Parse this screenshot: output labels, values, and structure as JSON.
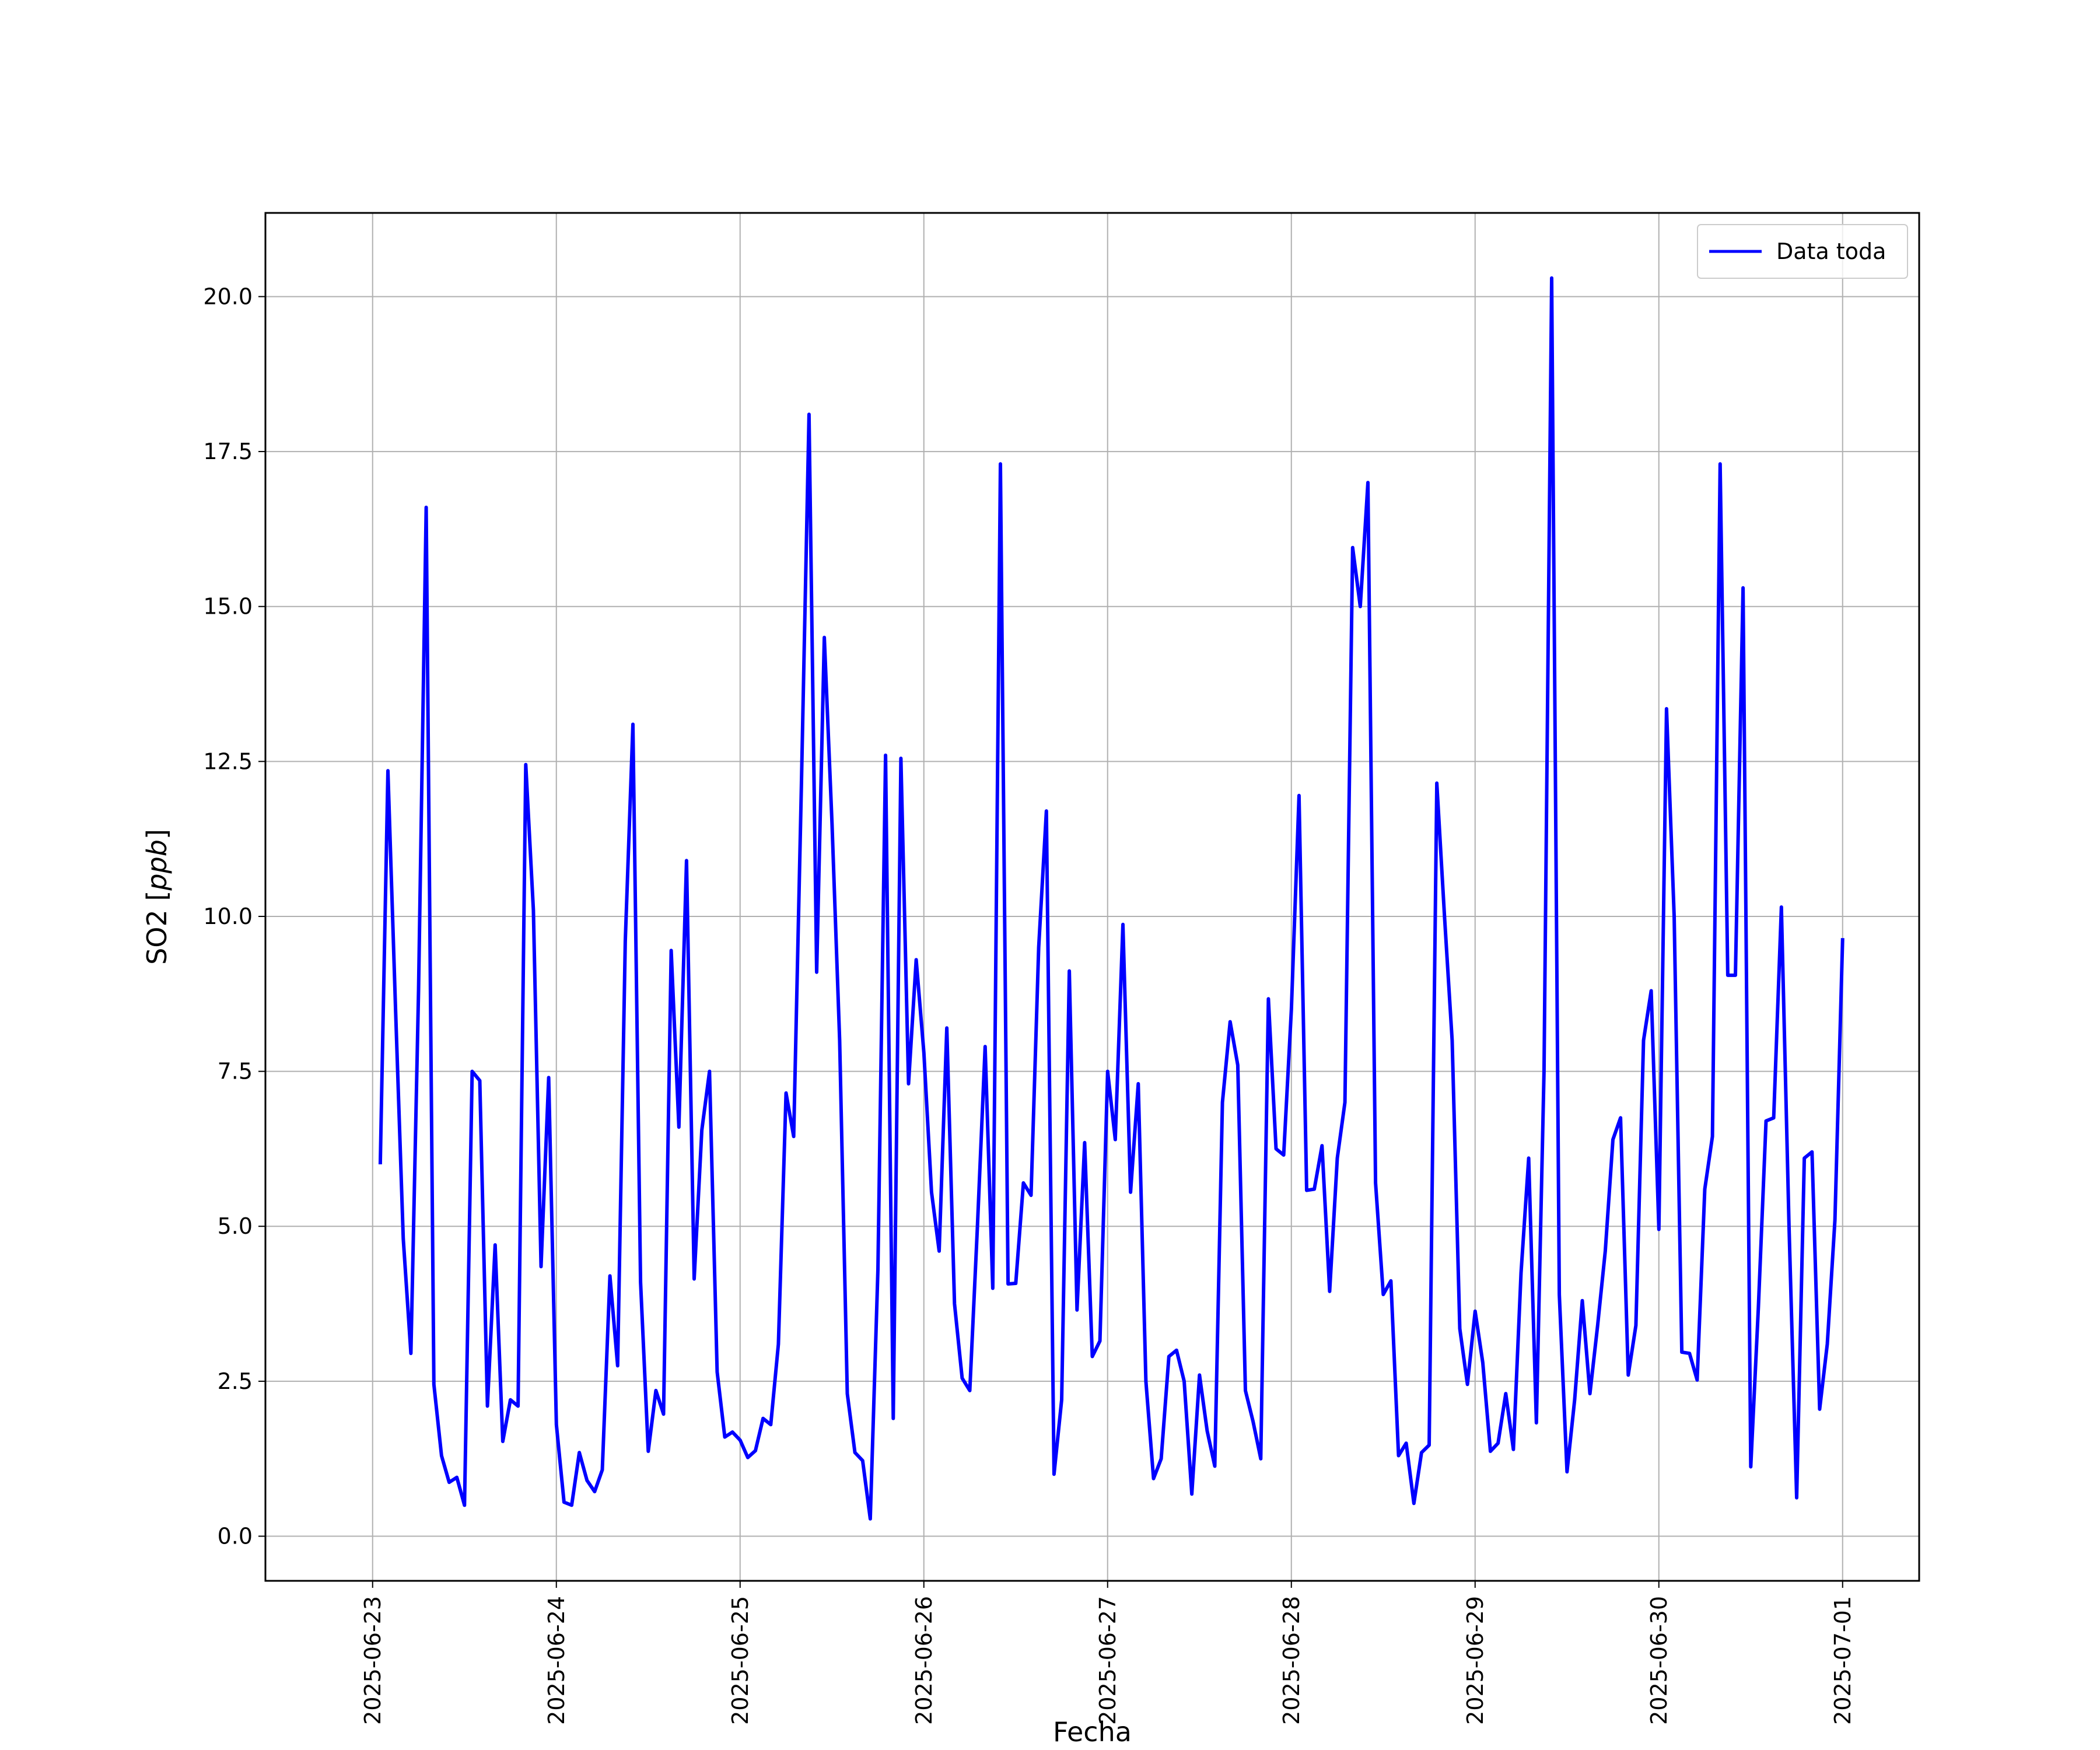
{
  "chart_data": {
    "type": "line",
    "xlabel": "Fecha",
    "ylabel_prefix": "SO2 [",
    "ylabel_unit": "ppb",
    "ylabel_suffix": "]",
    "x_ticks": [
      "2025-06-23",
      "2025-06-24",
      "2025-06-25",
      "2025-06-26",
      "2025-06-27",
      "2025-06-28",
      "2025-06-29",
      "2025-06-30",
      "2025-07-01"
    ],
    "y_ticks": [
      "0.0",
      "2.5",
      "5.0",
      "7.5",
      "10.0",
      "12.5",
      "15.0",
      "17.5",
      "20.0"
    ],
    "xlim": [
      "2025-06-22 10:00",
      "2025-07-01 10:00"
    ],
    "ylim": [
      -0.72,
      21.35
    ],
    "grid": true,
    "legend_position": "top-right",
    "series": [
      {
        "name": "Data toda",
        "color": "#0000ff",
        "x": [
          "2025-06-23 01:00",
          "2025-06-23 02:00",
          "2025-06-23 03:00",
          "2025-06-23 04:00",
          "2025-06-23 05:00",
          "2025-06-23 06:00",
          "2025-06-23 07:00",
          "2025-06-23 08:00",
          "2025-06-23 09:00",
          "2025-06-23 10:00",
          "2025-06-23 11:00",
          "2025-06-23 12:00",
          "2025-06-23 13:00",
          "2025-06-23 14:00",
          "2025-06-23 15:00",
          "2025-06-23 16:00",
          "2025-06-23 17:00",
          "2025-06-23 18:00",
          "2025-06-23 19:00",
          "2025-06-23 20:00",
          "2025-06-23 21:00",
          "2025-06-23 22:00",
          "2025-06-23 23:00",
          "2025-06-24 00:00",
          "2025-06-24 01:00",
          "2025-06-24 02:00",
          "2025-06-24 03:00",
          "2025-06-24 04:00",
          "2025-06-24 05:00",
          "2025-06-24 06:00",
          "2025-06-24 07:00",
          "2025-06-24 08:00",
          "2025-06-24 09:00",
          "2025-06-24 10:00",
          "2025-06-24 11:00",
          "2025-06-24 12:00",
          "2025-06-24 13:00",
          "2025-06-24 14:00",
          "2025-06-24 15:00",
          "2025-06-24 16:00",
          "2025-06-24 17:00",
          "2025-06-24 18:00",
          "2025-06-24 19:00",
          "2025-06-24 20:00",
          "2025-06-24 21:00",
          "2025-06-24 22:00",
          "2025-06-24 23:00",
          "2025-06-25 00:00",
          "2025-06-25 01:00",
          "2025-06-25 02:00",
          "2025-06-25 03:00",
          "2025-06-25 04:00",
          "2025-06-25 05:00",
          "2025-06-25 06:00",
          "2025-06-25 07:00",
          "2025-06-25 08:00",
          "2025-06-25 09:00",
          "2025-06-25 10:00",
          "2025-06-25 11:00",
          "2025-06-25 12:00",
          "2025-06-25 13:00",
          "2025-06-25 14:00",
          "2025-06-25 15:00",
          "2025-06-25 16:00",
          "2025-06-25 17:00",
          "2025-06-25 18:00",
          "2025-06-25 19:00",
          "2025-06-25 20:00",
          "2025-06-25 21:00",
          "2025-06-25 22:00",
          "2025-06-25 23:00",
          "2025-06-26 00:00",
          "2025-06-26 01:00",
          "2025-06-26 02:00",
          "2025-06-26 03:00",
          "2025-06-26 04:00",
          "2025-06-26 05:00",
          "2025-06-26 06:00",
          "2025-06-26 07:00",
          "2025-06-26 08:00",
          "2025-06-26 09:00",
          "2025-06-26 10:00",
          "2025-06-26 11:00",
          "2025-06-26 12:00",
          "2025-06-26 13:00",
          "2025-06-26 14:00",
          "2025-06-26 15:00",
          "2025-06-26 16:00",
          "2025-06-26 17:00",
          "2025-06-26 18:00",
          "2025-06-26 19:00",
          "2025-06-26 20:00",
          "2025-06-26 21:00",
          "2025-06-26 22:00",
          "2025-06-26 23:00",
          "2025-06-27 00:00",
          "2025-06-27 01:00",
          "2025-06-27 02:00",
          "2025-06-27 03:00",
          "2025-06-27 04:00",
          "2025-06-27 05:00",
          "2025-06-27 06:00",
          "2025-06-27 07:00",
          "2025-06-27 08:00",
          "2025-06-27 09:00",
          "2025-06-27 10:00",
          "2025-06-27 11:00",
          "2025-06-27 12:00",
          "2025-06-27 13:00",
          "2025-06-27 14:00",
          "2025-06-27 15:00",
          "2025-06-27 16:00",
          "2025-06-27 17:00",
          "2025-06-27 18:00",
          "2025-06-27 19:00",
          "2025-06-27 20:00",
          "2025-06-27 21:00",
          "2025-06-27 22:00",
          "2025-06-27 23:00",
          "2025-06-28 00:00",
          "2025-06-28 01:00",
          "2025-06-28 02:00",
          "2025-06-28 03:00",
          "2025-06-28 04:00",
          "2025-06-28 05:00",
          "2025-06-28 06:00",
          "2025-06-28 07:00",
          "2025-06-28 08:00",
          "2025-06-28 09:00",
          "2025-06-28 10:00",
          "2025-06-28 11:00",
          "2025-06-28 12:00",
          "2025-06-28 13:00",
          "2025-06-28 14:00",
          "2025-06-28 15:00",
          "2025-06-28 16:00",
          "2025-06-28 17:00",
          "2025-06-28 18:00",
          "2025-06-28 19:00",
          "2025-06-28 20:00",
          "2025-06-28 21:00",
          "2025-06-28 22:00",
          "2025-06-28 23:00",
          "2025-06-29 00:00",
          "2025-06-29 01:00",
          "2025-06-29 02:00",
          "2025-06-29 03:00",
          "2025-06-29 04:00",
          "2025-06-29 05:00",
          "2025-06-29 06:00",
          "2025-06-29 07:00",
          "2025-06-29 08:00",
          "2025-06-29 09:00",
          "2025-06-29 10:00",
          "2025-06-29 11:00",
          "2025-06-29 12:00",
          "2025-06-29 13:00",
          "2025-06-29 14:00",
          "2025-06-29 15:00",
          "2025-06-29 16:00",
          "2025-06-29 17:00",
          "2025-06-29 18:00",
          "2025-06-29 19:00",
          "2025-06-29 20:00",
          "2025-06-29 21:00",
          "2025-06-29 22:00",
          "2025-06-29 23:00",
          "2025-06-30 00:00",
          "2025-06-30 01:00",
          "2025-06-30 02:00",
          "2025-06-30 03:00",
          "2025-06-30 04:00",
          "2025-06-30 05:00",
          "2025-06-30 06:00",
          "2025-06-30 07:00",
          "2025-06-30 08:00",
          "2025-06-30 09:00",
          "2025-06-30 10:00",
          "2025-06-30 11:00",
          "2025-06-30 12:00",
          "2025-06-30 13:00",
          "2025-06-30 14:00",
          "2025-06-30 15:00",
          "2025-06-30 16:00",
          "2025-06-30 17:00",
          "2025-06-30 18:00",
          "2025-06-30 19:00",
          "2025-06-30 20:00",
          "2025-06-30 21:00",
          "2025-06-30 22:00",
          "2025-06-30 23:00",
          "2025-07-01 00:00"
        ],
        "values": [
          6.0,
          12.35,
          8.5,
          4.8,
          2.95,
          8.8,
          16.6,
          2.45,
          1.3,
          0.87,
          0.95,
          0.5,
          7.5,
          7.35,
          2.1,
          4.7,
          1.53,
          2.2,
          2.1,
          12.45,
          10.1,
          4.35,
          7.4,
          1.8,
          0.55,
          0.5,
          1.35,
          0.9,
          0.72,
          1.07,
          4.2,
          2.75,
          9.6,
          13.1,
          4.1,
          1.37,
          2.35,
          1.97,
          9.45,
          6.6,
          10.9,
          4.15,
          6.55,
          7.5,
          2.65,
          1.6,
          1.68,
          1.55,
          1.27,
          1.38,
          1.9,
          1.8,
          3.1,
          7.15,
          6.45,
          12.1,
          18.1,
          9.1,
          14.5,
          11.5,
          8.0,
          2.3,
          1.35,
          1.22,
          0.28,
          4.3,
          12.6,
          1.9,
          12.55,
          7.3,
          9.3,
          7.8,
          5.55,
          4.6,
          8.2,
          3.75,
          2.55,
          2.35,
          5.0,
          7.9,
          4.0,
          17.3,
          4.07,
          4.08,
          5.7,
          5.5,
          9.5,
          11.7,
          1.0,
          2.2,
          9.12,
          3.65,
          6.35,
          2.9,
          3.15,
          7.5,
          6.4,
          9.87,
          5.55,
          7.3,
          2.5,
          0.93,
          1.25,
          2.9,
          3.0,
          2.5,
          0.68,
          2.6,
          1.7,
          1.13,
          7.0,
          8.3,
          7.6,
          2.35,
          1.85,
          1.25,
          8.67,
          6.25,
          6.15,
          8.5,
          11.95,
          5.58,
          5.6,
          6.3,
          3.95,
          6.1,
          7.0,
          15.95,
          15.0,
          17.0,
          5.7,
          3.9,
          4.12,
          1.3,
          1.5,
          0.53,
          1.35,
          1.47,
          12.15,
          10.0,
          8.0,
          3.35,
          2.45,
          3.63,
          2.8,
          1.37,
          1.5,
          2.3,
          1.4,
          4.25,
          6.1,
          1.83,
          7.5,
          20.3,
          3.9,
          1.04,
          2.2,
          3.8,
          2.3,
          3.4,
          4.6,
          6.4,
          6.75,
          2.6,
          3.4,
          8.0,
          8.8,
          4.95,
          13.35,
          10.0,
          2.97,
          2.95,
          2.52,
          5.6,
          6.45,
          17.3,
          9.05,
          9.05,
          15.3,
          1.12,
          3.7,
          6.7,
          6.75,
          10.15,
          5.0,
          0.62,
          6.1,
          6.2,
          2.05,
          3.1,
          5.1,
          9.65
        ]
      }
    ]
  }
}
